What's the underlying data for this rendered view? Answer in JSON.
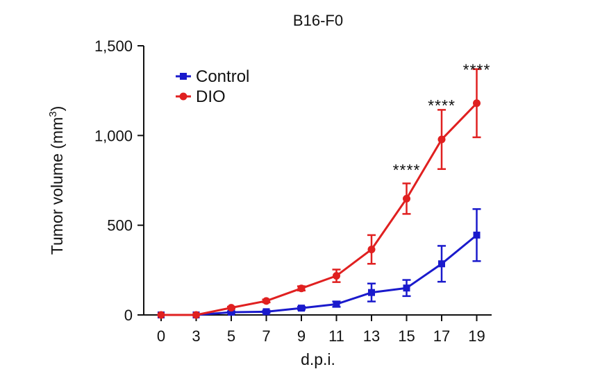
{
  "chart_data": {
    "type": "line",
    "title": "B16-F0",
    "xlabel": "d.p.i.",
    "ylabel": "Tumor volume (mm",
    "ylabel_sup": "3",
    "ylabel_close": ")",
    "x": [
      0,
      3,
      5,
      7,
      9,
      11,
      13,
      15,
      17,
      19
    ],
    "x_tick_labels": [
      "0",
      "3",
      "5",
      "7",
      "9",
      "11",
      "13",
      "15",
      "17",
      "19"
    ],
    "y_ticks": [
      0,
      500,
      1000,
      1500
    ],
    "y_tick_labels": [
      "0",
      "500",
      "1,000",
      "1,500"
    ],
    "ylim": [
      0,
      1500
    ],
    "grid": false,
    "legend_position": "top-left",
    "series": [
      {
        "name": "Control",
        "color": "#1a1acc",
        "marker": "square",
        "values": [
          0,
          0,
          15,
          18,
          38,
          60,
          125,
          150,
          285,
          445
        ],
        "errors": [
          0,
          0,
          5,
          6,
          8,
          15,
          50,
          45,
          100,
          145
        ]
      },
      {
        "name": "DIO",
        "color": "#e02020",
        "marker": "circle",
        "values": [
          0,
          0,
          40,
          78,
          148,
          218,
          365,
          648,
          978,
          1180
        ],
        "errors": [
          0,
          0,
          6,
          8,
          12,
          35,
          80,
          85,
          165,
          190
        ]
      }
    ],
    "annotations": [
      {
        "x": 15,
        "text": "****",
        "y": 815
      },
      {
        "x": 17,
        "text": "****",
        "y": 1175
      },
      {
        "x": 19,
        "text": "****",
        "y": 1375
      }
    ]
  }
}
